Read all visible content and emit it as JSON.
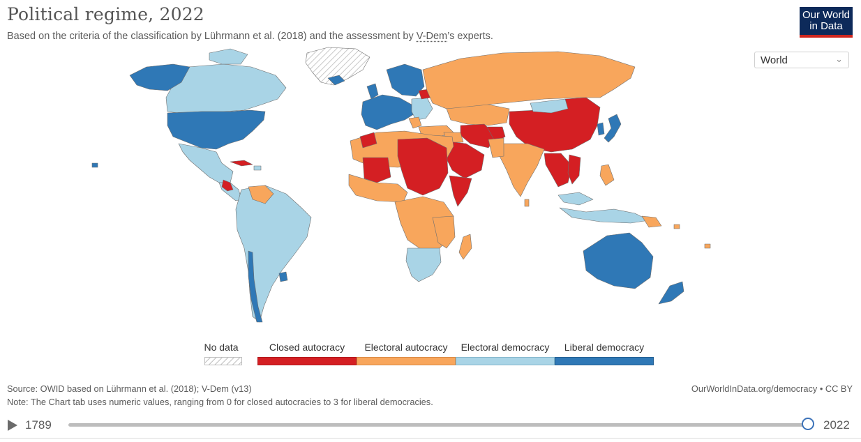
{
  "header": {
    "title": "Political regime, 2022",
    "subtitle_pre": "Based on the criteria of the classification by Lührmann et al. (2018) and the assessment by ",
    "subtitle_link": "V-Dem",
    "subtitle_post": "’s experts."
  },
  "logo": {
    "line1": "Our World",
    "line2": "in Data"
  },
  "region_select": {
    "value": "World"
  },
  "legend": {
    "no_data": "No data",
    "categories": [
      {
        "label": "Closed autocracy",
        "color": "#d41f23"
      },
      {
        "label": "Electoral autocracy",
        "color": "#f8a65c"
      },
      {
        "label": "Electoral democracy",
        "color": "#a9d4e6"
      },
      {
        "label": "Liberal democracy",
        "color": "#2f78b6"
      }
    ]
  },
  "colors": {
    "closed_autocracy": "#d41f23",
    "electoral_autocracy": "#f8a65c",
    "electoral_democracy": "#a9d4e6",
    "liberal_democracy": "#2f78b6",
    "logo_bg": "#0d2a5a",
    "logo_accent": "#ce261e"
  },
  "footer": {
    "source": "Source: OWID based on Lührmann et al. (2018); V-Dem (v13)",
    "note": "Note: The Chart tab uses numeric values, ranging from 0 for closed autocracies to 3 for liberal democracies.",
    "credit": "OurWorldInData.org/democracy • CC BY"
  },
  "timeline": {
    "start_year": "1789",
    "end_year": "2022",
    "selected_year": "2022"
  }
}
